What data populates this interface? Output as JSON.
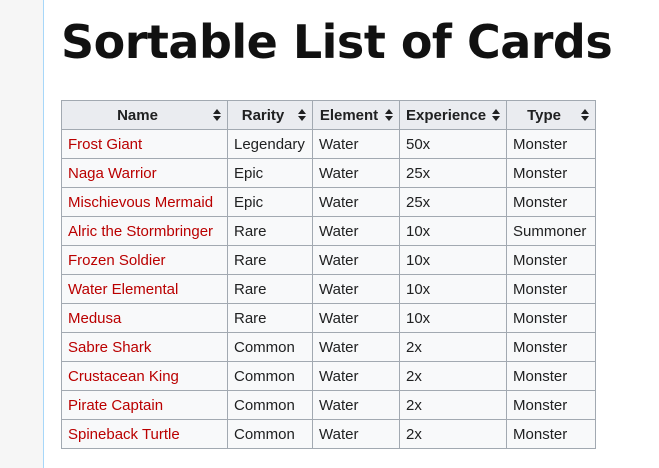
{
  "page": {
    "title": "Sortable List of Cards"
  },
  "table": {
    "headers": [
      "Name",
      "Rarity",
      "Element",
      "Experience",
      "Type"
    ],
    "rows": [
      [
        "Frost Giant",
        "Legendary",
        "Water",
        "50x",
        "Monster"
      ],
      [
        "Naga Warrior",
        "Epic",
        "Water",
        "25x",
        "Monster"
      ],
      [
        "Mischievous Mermaid",
        "Epic",
        "Water",
        "25x",
        "Monster"
      ],
      [
        "Alric the Stormbringer",
        "Rare",
        "Water",
        "10x",
        "Summoner"
      ],
      [
        "Frozen Soldier",
        "Rare",
        "Water",
        "10x",
        "Monster"
      ],
      [
        "Water Elemental",
        "Rare",
        "Water",
        "10x",
        "Monster"
      ],
      [
        "Medusa",
        "Rare",
        "Water",
        "10x",
        "Monster"
      ],
      [
        "Sabre Shark",
        "Common",
        "Water",
        "2x",
        "Monster"
      ],
      [
        "Crustacean King",
        "Common",
        "Water",
        "2x",
        "Monster"
      ],
      [
        "Pirate Captain",
        "Common",
        "Water",
        "2x",
        "Monster"
      ],
      [
        "Spineback Turtle",
        "Common",
        "Water",
        "2x",
        "Monster"
      ]
    ]
  },
  "icons": {
    "sort": "sort-arrows-icon"
  },
  "colors": {
    "link": "#ba0000",
    "header_bg": "#eaecf0",
    "border": "#a2a9b1"
  }
}
